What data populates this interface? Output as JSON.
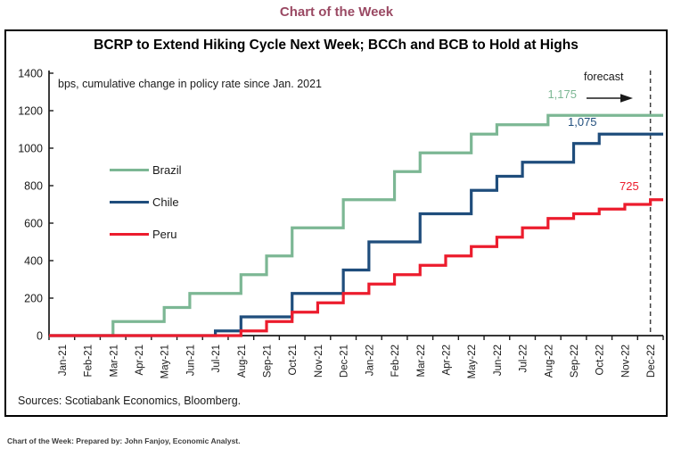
{
  "page": {
    "header_title": "Chart of the Week",
    "footer_credit": "Chart of the Week:  Prepared by: John Fanjoy, Economic Analyst."
  },
  "chart": {
    "title": "BCRP to Extend Hiking Cycle Next Week; BCCh and BCB to Hold at Highs",
    "subtitle": "bps, cumulative change in policy rate since Jan. 2021",
    "sources": "Sources: Scotiabank Economics, Bloomberg.",
    "forecast_label": "forecast"
  },
  "colors": {
    "header_text": "#9A4963",
    "axis": "#1a1a1a",
    "forecast_dashed_line": "#3f3f3f",
    "brazil": "#7CB794",
    "chile": "#1F4D7C",
    "peru": "#EC1C2D"
  },
  "chart_data": {
    "type": "line",
    "step": true,
    "title": "BCRP to Extend Hiking Cycle Next Week; BCCh and BCB to Hold at Highs",
    "ylabel_note": "bps, cumulative change in policy rate since Jan. 2021",
    "x": [
      "Jan-21",
      "Feb-21",
      "Mar-21",
      "Apr-21",
      "May-21",
      "Jun-21",
      "Jul-21",
      "Aug-21",
      "Sep-21",
      "Oct-21",
      "Nov-21",
      "Dec-21",
      "Jan-22",
      "Feb-22",
      "Mar-22",
      "Apr-22",
      "May-22",
      "Jun-22",
      "Jul-22",
      "Aug-22",
      "Sep-22",
      "Oct-22",
      "Nov-22",
      "Dec-22"
    ],
    "series": [
      {
        "name": "Brazil",
        "color": "#7CB794",
        "end_label": "1,175",
        "values": [
          0,
          0,
          75,
          75,
          150,
          225,
          225,
          325,
          425,
          575,
          575,
          725,
          725,
          875,
          975,
          975,
          1075,
          1125,
          1125,
          1175,
          1175,
          1175,
          1175,
          1175
        ]
      },
      {
        "name": "Chile",
        "color": "#1F4D7C",
        "end_label": "1,075",
        "values": [
          0,
          0,
          0,
          0,
          0,
          0,
          25,
          100,
          100,
          225,
          225,
          350,
          500,
          500,
          650,
          650,
          775,
          850,
          925,
          925,
          1025,
          1075,
          1075,
          1075
        ]
      },
      {
        "name": "Peru",
        "color": "#EC1C2D",
        "end_label": "725",
        "values": [
          0,
          0,
          0,
          0,
          0,
          0,
          0,
          25,
          75,
          125,
          175,
          225,
          275,
          325,
          375,
          425,
          475,
          525,
          575,
          625,
          650,
          675,
          700,
          725
        ]
      }
    ],
    "ylim": [
      0,
      1400
    ],
    "ytick_step": 200,
    "grid": false,
    "legend_position": "upper-left-inside",
    "forecast_boundary_label": "Dec-22"
  }
}
